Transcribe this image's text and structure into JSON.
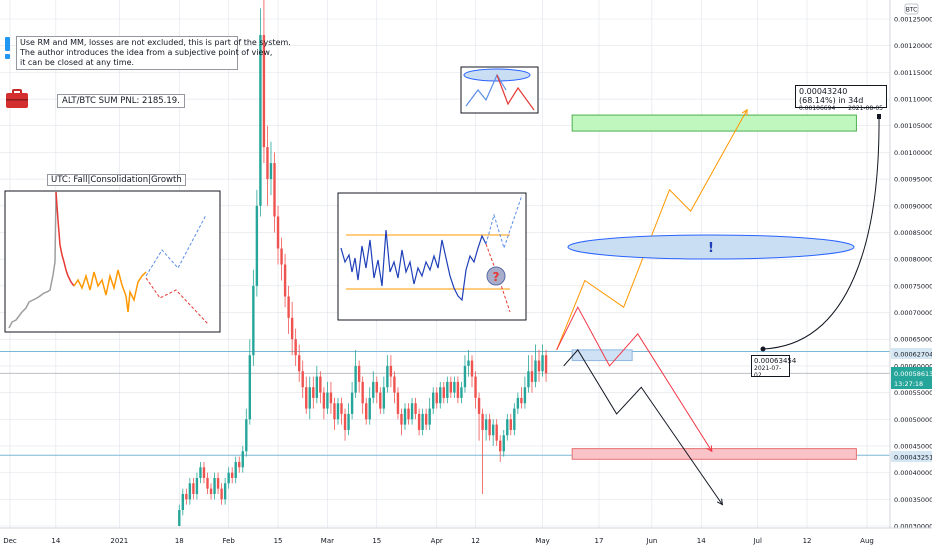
{
  "header": {
    "currency_label": "BTC"
  },
  "note": {
    "lines": [
      "Use RM and MM, losses are not excluded, this is part of the system.",
      "The author introduces the idea from a subjective point of view,",
      "it can be closed at any time."
    ]
  },
  "pnl_label": "ALT/BTC SUM PNL: 2185.19.",
  "inset": {
    "title": "UTC: Fall|Consolidation|Growth"
  },
  "exclamation_label": "!",
  "question_label": "?",
  "measure": {
    "title": "0.00043240 (68.14%) in 34d",
    "sub_price": "0.00106694",
    "sub_date": "2021-08-05"
  },
  "anchor": {
    "price": "0.00063454",
    "date": "2021-07-02"
  },
  "price_tags": {
    "upper_line": "0.00062704",
    "current": "0.00058613",
    "countdown": "13:27:18",
    "lower_line": "0.00043251"
  },
  "colors": {
    "up": "#26a69a",
    "down": "#ef5350",
    "grid": "#e0e3eb",
    "hline": "#7bb8d6",
    "orange": "#ff9800",
    "red": "#f23645",
    "blue": "#1e3fb8",
    "green_zone": "#bff7be",
    "red_zone": "#f9c3c8",
    "ellipse": "#c9ddf3"
  },
  "chart_data": {
    "type": "candlestick",
    "symbol_currency": "BTC",
    "ylim": [
      0.0003,
      0.00129
    ],
    "y_ticks": [
      "0.00125000",
      "0.00120000",
      "0.00115000",
      "0.00110000",
      "0.00105000",
      "0.00100000",
      "0.00095000",
      "0.00090000",
      "0.00085000",
      "0.00080000",
      "0.00075000",
      "0.00070000",
      "0.00065000",
      "0.00060000",
      "0.00055000",
      "0.00050000",
      "0.00045000",
      "0.00040000",
      "0.00035000",
      "0.00030000"
    ],
    "x_ticks": [
      "Dec",
      "14",
      "2021",
      "18",
      "Feb",
      "15",
      "Mar",
      "15",
      "Apr",
      "12",
      "May",
      "17",
      "Jun",
      "14",
      "Jul",
      "12",
      "Aug"
    ],
    "x_tick_days": [
      0,
      13,
      31,
      48,
      62,
      76,
      90,
      104,
      121,
      132,
      151,
      167,
      182,
      196,
      212,
      226,
      243
    ],
    "horizontal_levels": [
      0.00062704,
      0.00043251
    ],
    "candles": [
      {
        "day": 48,
        "o": 0.0003,
        "c": 0.00033,
        "h": 0.00034,
        "l": 0.0003
      },
      {
        "day": 49,
        "o": 0.00033,
        "c": 0.00036,
        "h": 0.00037,
        "l": 0.00032
      },
      {
        "day": 50,
        "o": 0.00036,
        "c": 0.00035,
        "h": 0.00037,
        "l": 0.00034
      },
      {
        "day": 51,
        "o": 0.00035,
        "c": 0.00038,
        "h": 0.00039,
        "l": 0.00034
      },
      {
        "day": 52,
        "o": 0.00038,
        "c": 0.00036,
        "h": 0.00039,
        "l": 0.00035
      },
      {
        "day": 53,
        "o": 0.00036,
        "c": 0.00039,
        "h": 0.0004,
        "l": 0.00035
      },
      {
        "day": 54,
        "o": 0.00039,
        "c": 0.00041,
        "h": 0.00042,
        "l": 0.00038
      },
      {
        "day": 55,
        "o": 0.00041,
        "c": 0.00039,
        "h": 0.00042,
        "l": 0.00038
      },
      {
        "day": 56,
        "o": 0.00039,
        "c": 0.00037,
        "h": 0.0004,
        "l": 0.00036
      },
      {
        "day": 57,
        "o": 0.00037,
        "c": 0.00036,
        "h": 0.00038,
        "l": 0.00035
      },
      {
        "day": 58,
        "o": 0.00036,
        "c": 0.00039,
        "h": 0.0004,
        "l": 0.00035
      },
      {
        "day": 59,
        "o": 0.00039,
        "c": 0.00037,
        "h": 0.0004,
        "l": 0.00036
      },
      {
        "day": 60,
        "o": 0.00037,
        "c": 0.00035,
        "h": 0.00038,
        "l": 0.00034
      },
      {
        "day": 61,
        "o": 0.00035,
        "c": 0.00038,
        "h": 0.00039,
        "l": 0.00034
      },
      {
        "day": 62,
        "o": 0.00038,
        "c": 0.0004,
        "h": 0.00041,
        "l": 0.00037
      },
      {
        "day": 63,
        "o": 0.0004,
        "c": 0.00039,
        "h": 0.00041,
        "l": 0.00038
      },
      {
        "day": 64,
        "o": 0.00039,
        "c": 0.00042,
        "h": 0.00043,
        "l": 0.00038
      },
      {
        "day": 65,
        "o": 0.00042,
        "c": 0.00041,
        "h": 0.00043,
        "l": 0.0004
      },
      {
        "day": 66,
        "o": 0.00041,
        "c": 0.00044,
        "h": 0.00045,
        "l": 0.0004
      },
      {
        "day": 67,
        "o": 0.00044,
        "c": 0.0005,
        "h": 0.00052,
        "l": 0.00043
      },
      {
        "day": 68,
        "o": 0.0005,
        "c": 0.00062,
        "h": 0.00065,
        "l": 0.00049
      },
      {
        "day": 69,
        "o": 0.00062,
        "c": 0.00075,
        "h": 0.00078,
        "l": 0.0006
      },
      {
        "day": 70,
        "o": 0.00075,
        "c": 0.0009,
        "h": 0.00093,
        "l": 0.00073
      },
      {
        "day": 71,
        "o": 0.0009,
        "c": 0.00122,
        "h": 0.00127,
        "l": 0.00088
      },
      {
        "day": 72,
        "o": 0.00122,
        "c": 0.00101,
        "h": 0.00129,
        "l": 0.00098
      },
      {
        "day": 73,
        "o": 0.00101,
        "c": 0.00095,
        "h": 0.00105,
        "l": 0.0009
      },
      {
        "day": 74,
        "o": 0.00095,
        "c": 0.00098,
        "h": 0.00102,
        "l": 0.00092
      },
      {
        "day": 75,
        "o": 0.00098,
        "c": 0.00088,
        "h": 0.001,
        "l": 0.00085
      },
      {
        "day": 76,
        "o": 0.00088,
        "c": 0.00082,
        "h": 0.0009,
        "l": 0.00079
      },
      {
        "day": 77,
        "o": 0.00082,
        "c": 0.00079,
        "h": 0.00084,
        "l": 0.00076
      },
      {
        "day": 78,
        "o": 0.00079,
        "c": 0.00073,
        "h": 0.00081,
        "l": 0.00071
      },
      {
        "day": 79,
        "o": 0.00073,
        "c": 0.00069,
        "h": 0.00075,
        "l": 0.00066
      },
      {
        "day": 80,
        "o": 0.00069,
        "c": 0.00065,
        "h": 0.00072,
        "l": 0.00062
      },
      {
        "day": 81,
        "o": 0.00065,
        "c": 0.00062,
        "h": 0.00067,
        "l": 0.0006
      },
      {
        "day": 82,
        "o": 0.00062,
        "c": 0.00059,
        "h": 0.00064,
        "l": 0.00057
      },
      {
        "day": 83,
        "o": 0.00059,
        "c": 0.00056,
        "h": 0.00061,
        "l": 0.00054
      },
      {
        "day": 84,
        "o": 0.00056,
        "c": 0.00052,
        "h": 0.00058,
        "l": 0.00051
      },
      {
        "day": 85,
        "o": 0.00052,
        "c": 0.00056,
        "h": 0.00058,
        "l": 0.0005
      },
      {
        "day": 86,
        "o": 0.00056,
        "c": 0.00054,
        "h": 0.00058,
        "l": 0.00052
      },
      {
        "day": 87,
        "o": 0.00054,
        "c": 0.00058,
        "h": 0.0006,
        "l": 0.00053
      },
      {
        "day": 88,
        "o": 0.00058,
        "c": 0.00055,
        "h": 0.00059,
        "l": 0.00053
      },
      {
        "day": 89,
        "o": 0.00055,
        "c": 0.00052,
        "h": 0.00056,
        "l": 0.0005
      },
      {
        "day": 90,
        "o": 0.00052,
        "c": 0.00055,
        "h": 0.00057,
        "l": 0.00051
      },
      {
        "day": 91,
        "o": 0.00055,
        "c": 0.00053,
        "h": 0.00057,
        "l": 0.00051
      },
      {
        "day": 92,
        "o": 0.00053,
        "c": 0.0005,
        "h": 0.00054,
        "l": 0.00048
      },
      {
        "day": 93,
        "o": 0.0005,
        "c": 0.00053,
        "h": 0.00054,
        "l": 0.00049
      },
      {
        "day": 94,
        "o": 0.00053,
        "c": 0.00051,
        "h": 0.00054,
        "l": 0.00049
      },
      {
        "day": 95,
        "o": 0.00051,
        "c": 0.00048,
        "h": 0.00052,
        "l": 0.00046
      },
      {
        "day": 96,
        "o": 0.00048,
        "c": 0.00051,
        "h": 0.00053,
        "l": 0.00047
      },
      {
        "day": 97,
        "o": 0.00051,
        "c": 0.00055,
        "h": 0.00057,
        "l": 0.0005
      },
      {
        "day": 98,
        "o": 0.00055,
        "c": 0.0006,
        "h": 0.00063,
        "l": 0.00054
      },
      {
        "day": 99,
        "o": 0.0006,
        "c": 0.00057,
        "h": 0.00061,
        "l": 0.00055
      },
      {
        "day": 100,
        "o": 0.00057,
        "c": 0.00053,
        "h": 0.00058,
        "l": 0.00051
      },
      {
        "day": 101,
        "o": 0.00053,
        "c": 0.0005,
        "h": 0.00054,
        "l": 0.00049
      },
      {
        "day": 102,
        "o": 0.0005,
        "c": 0.00054,
        "h": 0.00056,
        "l": 0.00049
      },
      {
        "day": 103,
        "o": 0.00054,
        "c": 0.00057,
        "h": 0.00059,
        "l": 0.00053
      },
      {
        "day": 104,
        "o": 0.00057,
        "c": 0.00055,
        "h": 0.00058,
        "l": 0.00053
      },
      {
        "day": 105,
        "o": 0.00055,
        "c": 0.00052,
        "h": 0.00056,
        "l": 0.00051
      },
      {
        "day": 106,
        "o": 0.00052,
        "c": 0.00056,
        "h": 0.00058,
        "l": 0.00051
      },
      {
        "day": 107,
        "o": 0.00056,
        "c": 0.0006,
        "h": 0.00062,
        "l": 0.00055
      },
      {
        "day": 108,
        "o": 0.0006,
        "c": 0.00058,
        "h": 0.00062,
        "l": 0.00056
      },
      {
        "day": 109,
        "o": 0.00058,
        "c": 0.00055,
        "h": 0.00059,
        "l": 0.00053
      },
      {
        "day": 110,
        "o": 0.00055,
        "c": 0.00051,
        "h": 0.00056,
        "l": 0.0005
      },
      {
        "day": 111,
        "o": 0.00051,
        "c": 0.00049,
        "h": 0.00052,
        "l": 0.00047
      },
      {
        "day": 112,
        "o": 0.00049,
        "c": 0.00052,
        "h": 0.00053,
        "l": 0.00048
      },
      {
        "day": 113,
        "o": 0.00052,
        "c": 0.0005,
        "h": 0.00053,
        "l": 0.00049
      },
      {
        "day": 114,
        "o": 0.0005,
        "c": 0.00053,
        "h": 0.00054,
        "l": 0.00049
      },
      {
        "day": 115,
        "o": 0.00053,
        "c": 0.00051,
        "h": 0.00054,
        "l": 0.0005
      },
      {
        "day": 116,
        "o": 0.00051,
        "c": 0.00048,
        "h": 0.00052,
        "l": 0.00047
      },
      {
        "day": 117,
        "o": 0.00048,
        "c": 0.00051,
        "h": 0.00052,
        "l": 0.00047
      },
      {
        "day": 118,
        "o": 0.00051,
        "c": 0.00049,
        "h": 0.00052,
        "l": 0.00048
      },
      {
        "day": 119,
        "o": 0.00049,
        "c": 0.00052,
        "h": 0.00054,
        "l": 0.00048
      },
      {
        "day": 120,
        "o": 0.00052,
        "c": 0.00055,
        "h": 0.00056,
        "l": 0.00051
      },
      {
        "day": 121,
        "o": 0.00055,
        "c": 0.00053,
        "h": 0.00056,
        "l": 0.00052
      },
      {
        "day": 122,
        "o": 0.00053,
        "c": 0.00056,
        "h": 0.00057,
        "l": 0.00052
      },
      {
        "day": 123,
        "o": 0.00056,
        "c": 0.00054,
        "h": 0.00057,
        "l": 0.00053
      },
      {
        "day": 124,
        "o": 0.00054,
        "c": 0.00057,
        "h": 0.00058,
        "l": 0.00053
      },
      {
        "day": 125,
        "o": 0.00057,
        "c": 0.00055,
        "h": 0.00058,
        "l": 0.00054
      },
      {
        "day": 126,
        "o": 0.00055,
        "c": 0.00057,
        "h": 0.00058,
        "l": 0.00054
      },
      {
        "day": 127,
        "o": 0.00057,
        "c": 0.00054,
        "h": 0.00058,
        "l": 0.00053
      },
      {
        "day": 128,
        "o": 0.00054,
        "c": 0.00056,
        "h": 0.00057,
        "l": 0.00053
      },
      {
        "day": 129,
        "o": 0.00056,
        "c": 0.0006,
        "h": 0.00062,
        "l": 0.00055
      },
      {
        "day": 130,
        "o": 0.0006,
        "c": 0.00061,
        "h": 0.00063,
        "l": 0.00058
      },
      {
        "day": 131,
        "o": 0.00061,
        "c": 0.00058,
        "h": 0.00062,
        "l": 0.00056
      },
      {
        "day": 132,
        "o": 0.00058,
        "c": 0.00054,
        "h": 0.00059,
        "l": 0.00052
      },
      {
        "day": 133,
        "o": 0.00054,
        "c": 0.00051,
        "h": 0.00055,
        "l": 0.00046
      },
      {
        "day": 134,
        "o": 0.00051,
        "c": 0.00048,
        "h": 0.00052,
        "l": 0.00036
      },
      {
        "day": 135,
        "o": 0.00048,
        "c": 0.0005,
        "h": 0.00051,
        "l": 0.00046
      },
      {
        "day": 136,
        "o": 0.0005,
        "c": 0.00047,
        "h": 0.00051,
        "l": 0.00046
      },
      {
        "day": 137,
        "o": 0.00047,
        "c": 0.00049,
        "h": 0.0005,
        "l": 0.00045
      },
      {
        "day": 138,
        "o": 0.00049,
        "c": 0.00046,
        "h": 0.0005,
        "l": 0.00045
      },
      {
        "day": 139,
        "o": 0.00046,
        "c": 0.00044,
        "h": 0.00047,
        "l": 0.00042
      },
      {
        "day": 140,
        "o": 0.00044,
        "c": 0.00047,
        "h": 0.00048,
        "l": 0.00043
      },
      {
        "day": 141,
        "o": 0.00047,
        "c": 0.0005,
        "h": 0.00051,
        "l": 0.00046
      },
      {
        "day": 142,
        "o": 0.0005,
        "c": 0.00048,
        "h": 0.00051,
        "l": 0.00047
      },
      {
        "day": 143,
        "o": 0.00048,
        "c": 0.00052,
        "h": 0.00053,
        "l": 0.00047
      },
      {
        "day": 144,
        "o": 0.00052,
        "c": 0.00054,
        "h": 0.00055,
        "l": 0.00051
      },
      {
        "day": 145,
        "o": 0.00054,
        "c": 0.00053,
        "h": 0.00056,
        "l": 0.00052
      },
      {
        "day": 146,
        "o": 0.00053,
        "c": 0.00056,
        "h": 0.00058,
        "l": 0.00052
      },
      {
        "day": 147,
        "o": 0.00056,
        "c": 0.00059,
        "h": 0.00062,
        "l": 0.00055
      },
      {
        "day": 148,
        "o": 0.00059,
        "c": 0.00057,
        "h": 0.00062,
        "l": 0.00055
      },
      {
        "day": 149,
        "o": 0.00057,
        "c": 0.00061,
        "h": 0.00064,
        "l": 0.00056
      },
      {
        "day": 150,
        "o": 0.00061,
        "c": 0.00059,
        "h": 0.00063,
        "l": 0.00057
      },
      {
        "day": 151,
        "o": 0.00059,
        "c": 0.00062,
        "h": 0.00064,
        "l": 0.00058
      },
      {
        "day": 152,
        "o": 0.00062,
        "c": 0.00058613,
        "h": 0.00063,
        "l": 0.00057
      }
    ],
    "projections": [
      {
        "color": "orange",
        "points": [
          [
            155,
            0.00063
          ],
          [
            163,
            0.00076
          ],
          [
            174,
            0.00071
          ],
          [
            187,
            0.00093
          ],
          [
            193,
            0.00089
          ],
          [
            209,
            0.00108
          ]
        ]
      },
      {
        "color": "red",
        "points": [
          [
            155,
            0.00063
          ],
          [
            161,
            0.00071
          ],
          [
            170,
            0.0006
          ],
          [
            178,
            0.00066
          ],
          [
            199,
            0.00044
          ]
        ]
      },
      {
        "color": "black",
        "points": [
          [
            157,
            0.0006
          ],
          [
            161,
            0.00063
          ],
          [
            172,
            0.00051
          ],
          [
            179,
            0.00056
          ],
          [
            202,
            0.00034
          ]
        ]
      }
    ],
    "zones": [
      {
        "name": "green-target",
        "x": [
          156,
          240
        ],
        "y": [
          0.00104,
          0.00107
        ]
      },
      {
        "name": "red-support",
        "x": [
          156,
          240
        ],
        "y": [
          0.000425,
          0.000445
        ]
      },
      {
        "name": "blue-entry",
        "x": [
          156,
          172
        ],
        "y": [
          0.00061,
          0.00063
        ]
      }
    ]
  }
}
